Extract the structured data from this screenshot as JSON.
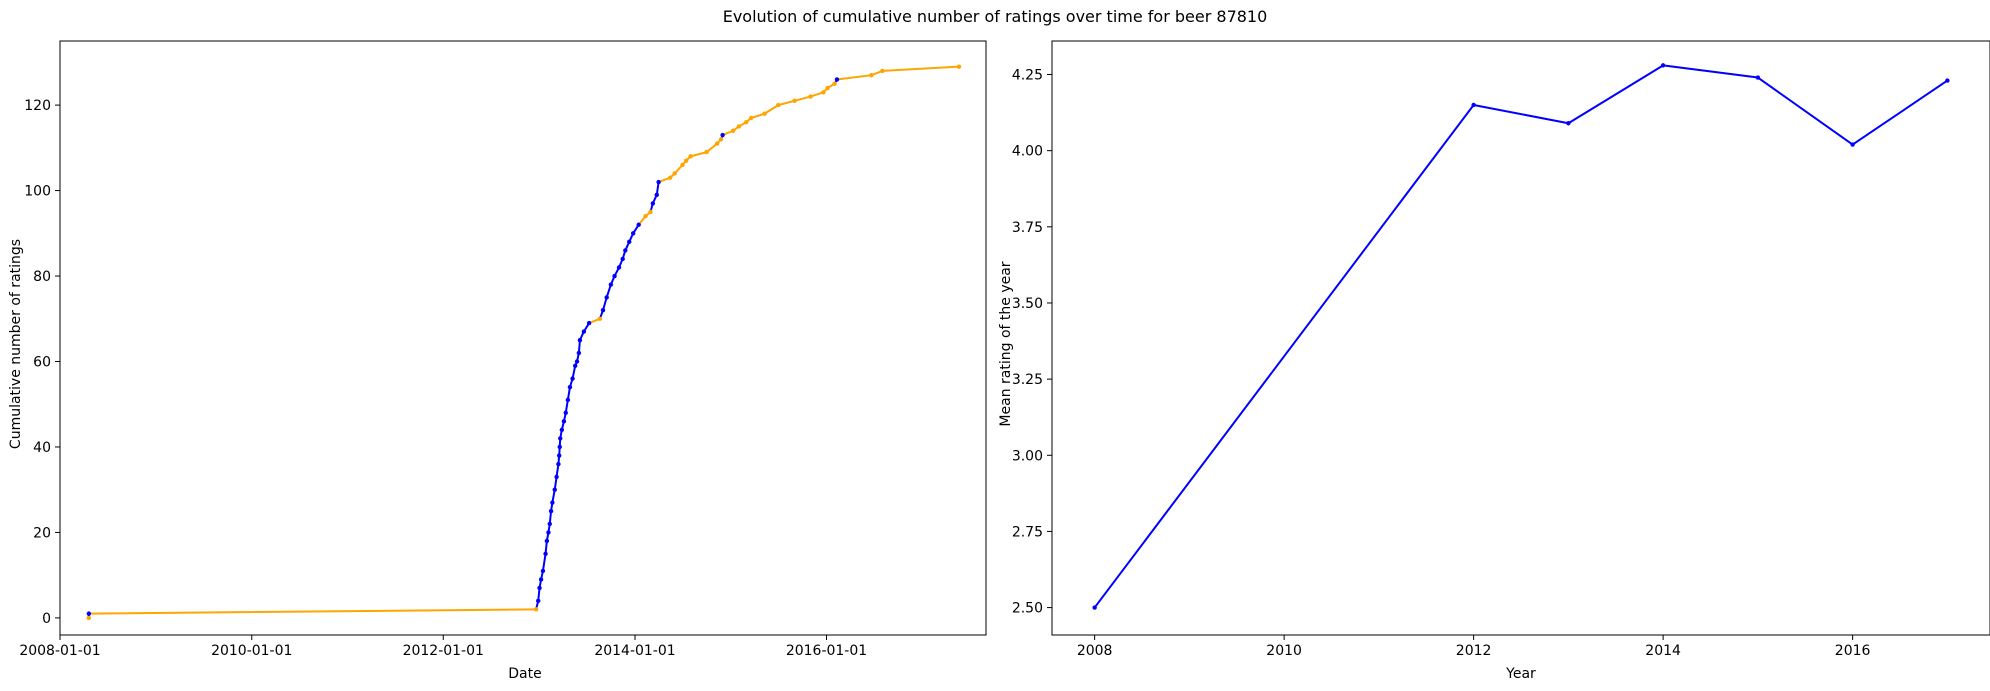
{
  "figure": {
    "title": "Evolution of cumulative number of ratings over time for beer 87810"
  },
  "colors": {
    "increase": "#0000ff",
    "flat": "#ffa500",
    "yearly_line": "#0000ff"
  },
  "chart_data": [
    {
      "type": "line",
      "title": "",
      "xlabel": "Date",
      "ylabel": "Cumulative number of ratings",
      "x_type": "date",
      "xlim": [
        "2008-01-01",
        "2017-08-31"
      ],
      "ylim": [
        -4,
        135
      ],
      "xticks": [
        "2008-01-01",
        "2010-01-01",
        "2012-01-01",
        "2014-01-01",
        "2016-01-01"
      ],
      "xtick_labels": [
        "2008-01-01",
        "2010-01-01",
        "2012-01-01",
        "2014-01-01",
        "2016-01-01"
      ],
      "yticks": [
        0,
        20,
        40,
        60,
        80,
        100,
        120
      ],
      "grid": false,
      "legend": false,
      "series": [
        {
          "points": [
            [
              "2008-04-20",
              0
            ],
            [
              "2008-04-20",
              1
            ],
            [
              "2012-12-20",
              2
            ],
            [
              "2012-12-28",
              4
            ],
            [
              "2013-01-02",
              7
            ],
            [
              "2013-01-08",
              9
            ],
            [
              "2013-01-15",
              11
            ],
            [
              "2013-01-25",
              15
            ],
            [
              "2013-01-30",
              18
            ],
            [
              "2013-02-05",
              20
            ],
            [
              "2013-02-10",
              22
            ],
            [
              "2013-02-15",
              25
            ],
            [
              "2013-02-20",
              27
            ],
            [
              "2013-03-01",
              30
            ],
            [
              "2013-03-08",
              33
            ],
            [
              "2013-03-15",
              36
            ],
            [
              "2013-03-18",
              38
            ],
            [
              "2013-03-20",
              40
            ],
            [
              "2013-03-22",
              42
            ],
            [
              "2013-03-28",
              44
            ],
            [
              "2013-04-05",
              46
            ],
            [
              "2013-04-12",
              48
            ],
            [
              "2013-04-20",
              51
            ],
            [
              "2013-04-28",
              54
            ],
            [
              "2013-05-08",
              56
            ],
            [
              "2013-05-18",
              59
            ],
            [
              "2013-05-25",
              60
            ],
            [
              "2013-06-01",
              62
            ],
            [
              "2013-06-05",
              65
            ],
            [
              "2013-06-20",
              67
            ],
            [
              "2013-07-10",
              69
            ],
            [
              "2013-08-20",
              70
            ],
            [
              "2013-09-01",
              72
            ],
            [
              "2013-09-15",
              75
            ],
            [
              "2013-10-01",
              78
            ],
            [
              "2013-10-15",
              80
            ],
            [
              "2013-11-01",
              82
            ],
            [
              "2013-11-15",
              84
            ],
            [
              "2013-11-25",
              86
            ],
            [
              "2013-12-10",
              88
            ],
            [
              "2013-12-25",
              90
            ],
            [
              "2014-01-15",
              92
            ],
            [
              "2014-02-10",
              94
            ],
            [
              "2014-03-01",
              95
            ],
            [
              "2014-03-10",
              97
            ],
            [
              "2014-03-25",
              99
            ],
            [
              "2014-04-01",
              102
            ],
            [
              "2014-05-15",
              103
            ],
            [
              "2014-06-01",
              104
            ],
            [
              "2014-07-01",
              106
            ],
            [
              "2014-07-15",
              107
            ],
            [
              "2014-08-01",
              108
            ],
            [
              "2014-10-01",
              109
            ],
            [
              "2014-11-10",
              111
            ],
            [
              "2014-11-25",
              112
            ],
            [
              "2014-12-01",
              113
            ],
            [
              "2015-01-10",
              114
            ],
            [
              "2015-02-01",
              115
            ],
            [
              "2015-03-01",
              116
            ],
            [
              "2015-03-20",
              117
            ],
            [
              "2015-05-10",
              118
            ],
            [
              "2015-07-01",
              120
            ],
            [
              "2015-09-01",
              121
            ],
            [
              "2015-11-01",
              122
            ],
            [
              "2015-12-20",
              123
            ],
            [
              "2016-01-05",
              124
            ],
            [
              "2016-02-01",
              125
            ],
            [
              "2016-02-10",
              126
            ],
            [
              "2016-06-20",
              127
            ],
            [
              "2016-08-01",
              128
            ],
            [
              "2017-05-20",
              129
            ]
          ]
        }
      ]
    },
    {
      "type": "line",
      "title": "",
      "xlabel": "Year",
      "ylabel": "Mean rating of the year",
      "xlim": [
        2007.55,
        2017.45
      ],
      "ylim": [
        2.41,
        4.36
      ],
      "xticks": [
        2008,
        2010,
        2012,
        2014,
        2016
      ],
      "yticks": [
        2.5,
        2.75,
        3.0,
        3.25,
        3.5,
        3.75,
        4.0,
        4.25
      ],
      "ytick_labels": [
        "2.50",
        "2.75",
        "3.00",
        "3.25",
        "3.50",
        "3.75",
        "4.00",
        "4.25"
      ],
      "grid": false,
      "legend": false,
      "series": [
        {
          "x": [
            2008,
            2012,
            2013,
            2014,
            2015,
            2016,
            2017
          ],
          "values": [
            2.5,
            4.15,
            4.09,
            4.28,
            4.24,
            4.02,
            4.23
          ]
        }
      ]
    }
  ]
}
